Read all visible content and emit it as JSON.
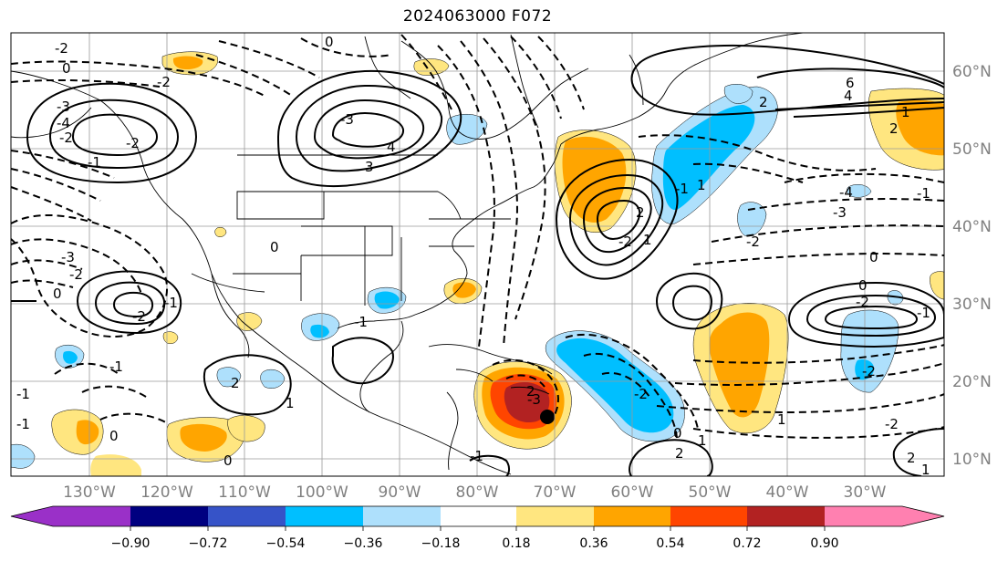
{
  "title": "2024063000 F072",
  "map": {
    "lon_labels": [
      "130°W",
      "120°W",
      "110°W",
      "100°W",
      "90°W",
      "80°W",
      "70°W",
      "60°W",
      "50°W",
      "40°W",
      "30°W"
    ],
    "lat_labels": [
      "60°N",
      "50°N",
      "40°N",
      "30°N",
      "20°N",
      "10°N"
    ],
    "contour_labels": [
      "0",
      "-2",
      "0",
      "-2",
      "-3",
      "-4",
      "4",
      "3",
      "-3",
      "-2",
      "0",
      "6",
      "4",
      "2",
      "1",
      "-4",
      "-3",
      "-2",
      "-1",
      "0",
      "-1",
      "2",
      "1",
      "2",
      "0",
      "-2",
      "-1",
      "-2",
      "-1",
      "1",
      "-2",
      "-1",
      "0",
      "2",
      "1",
      "2",
      "2",
      "-1",
      "0",
      "2",
      "-1",
      "-3",
      "-2",
      "0",
      "-2",
      "-2",
      "-1",
      "-1",
      "-3",
      "-2",
      "-2",
      "-1",
      "0",
      "1",
      "1",
      "1"
    ]
  },
  "colorbar": {
    "tick_labels": [
      "−0.90",
      "−0.72",
      "−0.54",
      "−0.36",
      "−0.18",
      "0.18",
      "0.36",
      "0.54",
      "0.72",
      "0.90"
    ],
    "colors": [
      "#9a30c8",
      "#000080",
      "#3653c8",
      "#00bfff",
      "#aee0fc",
      "#ffffff",
      "#ffe680",
      "#ffa500",
      "#ff4500",
      "#b22222",
      "#ff80b0"
    ]
  }
}
